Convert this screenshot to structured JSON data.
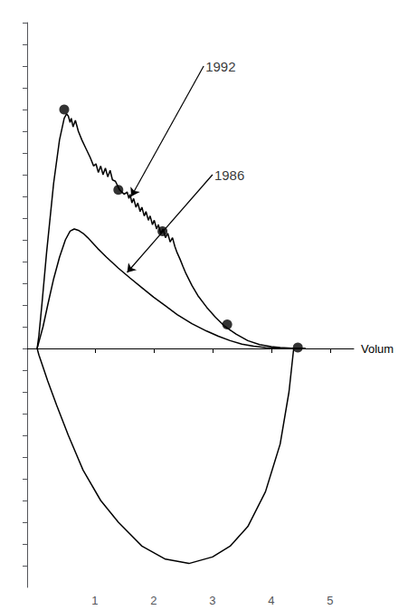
{
  "chart_data": {
    "type": "line",
    "xlabel": "Volum",
    "xlim": [
      -0.15,
      5.4
    ],
    "ylim": [
      -5.5,
      7.5
    ],
    "xticks": [
      1,
      2,
      3,
      4,
      5
    ],
    "yticks": [
      -5,
      -4.5,
      -4,
      -3.5,
      -3,
      -2.5,
      -2,
      -1.5,
      -1,
      -0.5,
      0,
      0.5,
      1,
      1.5,
      2,
      2.5,
      3,
      3.5,
      4,
      4.5,
      5,
      5.5,
      6,
      6.5,
      7,
      7.5
    ],
    "tick_labels": "x",
    "grid": false,
    "series": [
      {
        "type": "line",
        "color": "#000000",
        "x": [
          0.02,
          0.05,
          0.1,
          0.18,
          0.3,
          0.4,
          0.48,
          0.52,
          0.55,
          0.58,
          0.6,
          0.63,
          0.67,
          0.72,
          0.78,
          0.85,
          0.92,
          0.98,
          1.02,
          1.06,
          1.1,
          1.14,
          1.18,
          1.22,
          1.26,
          1.3,
          1.35,
          1.42,
          1.5,
          1.55,
          1.58,
          1.6,
          1.63,
          1.66,
          1.7,
          1.73,
          1.77,
          1.8,
          1.84,
          1.87,
          1.91,
          1.94,
          1.98,
          2.01,
          2.05,
          2.08,
          2.12,
          2.16,
          2.2,
          2.24,
          2.28,
          2.32,
          2.36,
          2.4,
          2.45,
          2.5,
          2.55,
          2.65,
          2.75,
          2.9,
          3.05,
          3.2,
          3.4,
          3.6,
          3.8,
          4.0,
          4.15,
          4.28,
          4.4,
          4.5,
          4.55,
          4.58
        ],
        "values": [
          0.0,
          0.3,
          1.0,
          2.2,
          3.8,
          4.8,
          5.3,
          5.4,
          5.35,
          5.2,
          5.3,
          5.1,
          5.25,
          5.0,
          4.8,
          4.6,
          4.4,
          4.2,
          4.25,
          4.05,
          4.2,
          4.0,
          4.15,
          3.95,
          4.1,
          3.88,
          3.85,
          3.65,
          3.55,
          3.6,
          3.45,
          3.55,
          3.35,
          3.45,
          3.25,
          3.35,
          3.15,
          3.25,
          3.05,
          3.15,
          2.95,
          3.05,
          2.85,
          2.95,
          2.75,
          2.85,
          2.65,
          2.75,
          2.55,
          2.65,
          2.45,
          2.55,
          2.35,
          2.2,
          2.05,
          1.88,
          1.72,
          1.45,
          1.22,
          0.95,
          0.72,
          0.52,
          0.33,
          0.18,
          0.09,
          0.04,
          0.02,
          0.01,
          0.0,
          0.0,
          0.0,
          0.0
        ]
      },
      {
        "type": "line",
        "color": "#000000",
        "x": [
          0.02,
          0.06,
          0.12,
          0.2,
          0.3,
          0.4,
          0.5,
          0.58,
          0.65,
          0.72,
          0.8,
          0.88,
          0.95,
          1.05,
          1.2,
          1.4,
          1.6,
          1.8,
          2.0,
          2.2,
          2.4,
          2.65,
          2.9,
          3.1,
          3.3,
          3.5,
          3.7,
          3.9,
          4.1,
          4.22,
          4.3,
          4.35,
          4.38
        ],
        "values": [
          0.0,
          0.2,
          0.5,
          1.0,
          1.6,
          2.1,
          2.5,
          2.7,
          2.75,
          2.72,
          2.65,
          2.55,
          2.45,
          2.3,
          2.1,
          1.85,
          1.62,
          1.4,
          1.18,
          0.98,
          0.78,
          0.57,
          0.4,
          0.28,
          0.18,
          0.1,
          0.05,
          0.02,
          0.01,
          0.0,
          0.0,
          0.0,
          0.0
        ]
      },
      {
        "type": "line",
        "color": "#000000",
        "x": [
          0.02,
          0.05,
          0.1,
          0.2,
          0.35,
          0.55,
          0.8,
          1.1,
          1.4,
          1.8,
          2.2,
          2.6,
          3.0,
          3.3,
          3.6,
          3.9,
          4.15,
          4.3,
          4.38
        ],
        "values": [
          0.0,
          -0.15,
          -0.35,
          -0.75,
          -1.3,
          -2.0,
          -2.8,
          -3.5,
          -4.0,
          -4.55,
          -4.85,
          -4.95,
          -4.8,
          -4.55,
          -4.1,
          -3.3,
          -2.2,
          -1.0,
          0.0
        ]
      },
      {
        "type": "scatter",
        "color": "#000000",
        "marker": "circle",
        "x": [
          0.48,
          1.4,
          2.15
        ],
        "values": [
          5.5,
          3.65,
          2.7
        ]
      },
      {
        "type": "scatter",
        "color": "#000000",
        "marker": "circle",
        "x": [
          3.25,
          4.45
        ],
        "values": [
          0.55,
          0.02
        ]
      }
    ],
    "annotations": [
      {
        "text": "1992",
        "xy": [
          1.62,
          3.5
        ],
        "xytext": [
          2.85,
          6.5
        ]
      },
      {
        "text": "1986",
        "xy": [
          1.55,
          1.75
        ],
        "xytext": [
          3.0,
          4.0
        ]
      }
    ]
  }
}
